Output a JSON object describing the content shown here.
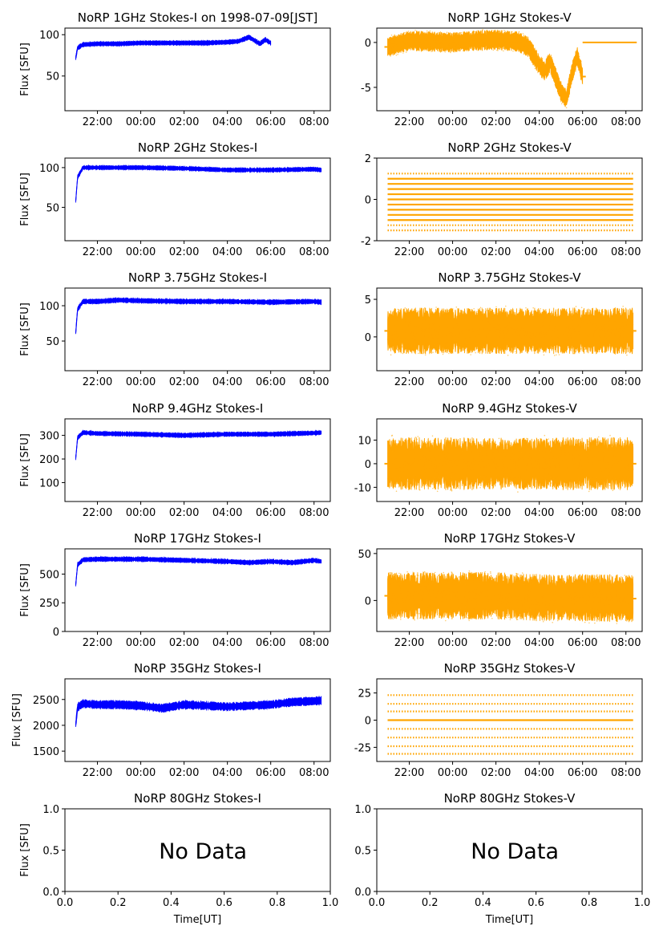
{
  "figure": {
    "x_label": "Time[UT]",
    "y_label": "Flux [SFU]",
    "time_tick_labels": [
      "22:00",
      "00:00",
      "02:00",
      "04:00",
      "06:00",
      "08:00"
    ],
    "no_data_text": "No Data",
    "empty_axis_ticks": [
      "0.0",
      "0.2",
      "0.4",
      "0.6",
      "0.8",
      "1.0"
    ],
    "empty_y_ticks": [
      "0.0",
      "0.5",
      "1.0"
    ],
    "colors": {
      "stokes_i": "#0000ff",
      "stokes_v": "#ffa500",
      "axis": "#000000"
    }
  },
  "chart_data": [
    {
      "type": "line",
      "title": "NoRP 1GHz Stokes-I on 1998-07-09[JST]",
      "ylabel": "Flux [SFU]",
      "xlabel": "",
      "x_range": [
        "1998-07-08 20:30",
        "1998-07-09 08:45"
      ],
      "ylim": [
        8,
        108
      ],
      "y_ticks": [
        50,
        100
      ],
      "series": [
        {
          "color": "#0000ff",
          "x_span": [
            "1998-07-08 21:00",
            "1998-07-09 06:00"
          ],
          "noise": 2,
          "x": [
            "21:00",
            "21:05",
            "21:20",
            "22:00",
            "23:00",
            "00:00",
            "01:00",
            "02:00",
            "03:00",
            "04:00",
            "04:30",
            "05:00",
            "05:15",
            "05:30",
            "05:45",
            "06:00"
          ],
          "y": [
            72,
            84,
            88,
            89,
            89,
            90,
            90,
            90,
            90,
            91,
            92,
            97,
            93,
            89,
            94,
            90
          ]
        }
      ]
    },
    {
      "type": "scatter",
      "title": "NoRP 1GHz Stokes-V",
      "ylabel": "",
      "xlabel": "",
      "x_range": [
        "1998-07-08 20:30",
        "1998-07-09 08:45"
      ],
      "ylim": [
        -7.6,
        1.6
      ],
      "y_ticks": [
        -5,
        0
      ],
      "series": [
        {
          "color": "#ffa500",
          "x_span": [
            "1998-07-08 21:00",
            "1998-07-09 06:00"
          ],
          "noise": 0.8,
          "x": [
            "21:00",
            "22:00",
            "23:00",
            "00:00",
            "01:00",
            "02:00",
            "03:00",
            "03:30",
            "04:00",
            "04:15",
            "04:30",
            "05:00",
            "05:15",
            "05:30",
            "05:45",
            "06:00"
          ],
          "y": [
            -0.5,
            0.2,
            0.1,
            0,
            0.2,
            0.3,
            0.1,
            -0.5,
            -2.5,
            -3.2,
            -2.2,
            -5.5,
            -6.3,
            -3.5,
            -1.5,
            -3.8
          ]
        },
        {
          "color": "#ffa500",
          "x_span": [
            "1998-07-09 06:00",
            "1998-07-09 08:30"
          ],
          "noise": 0,
          "x": [
            "06:00",
            "08:30"
          ],
          "y": [
            0,
            0
          ]
        }
      ]
    },
    {
      "type": "line",
      "title": "NoRP 2GHz Stokes-I",
      "ylabel": "Flux [SFU]",
      "xlabel": "",
      "x_range": [
        "1998-07-08 20:30",
        "1998-07-09 08:45"
      ],
      "ylim": [
        8,
        112
      ],
      "y_ticks": [
        50,
        100
      ],
      "series": [
        {
          "color": "#0000ff",
          "x_span": [
            "1998-07-08 21:00",
            "1998-07-09 08:20"
          ],
          "noise": 2,
          "x": [
            "21:00",
            "21:05",
            "21:20",
            "22:00",
            "00:00",
            "02:00",
            "04:00",
            "06:00",
            "08:00",
            "08:20"
          ],
          "y": [
            58,
            88,
            100,
            100,
            100,
            99,
            97,
            97,
            98,
            97
          ]
        }
      ]
    },
    {
      "type": "scatter",
      "title": "NoRP 2GHz Stokes-V",
      "ylabel": "",
      "xlabel": "",
      "x_range": [
        "1998-07-08 20:30",
        "1998-07-09 08:45"
      ],
      "ylim": [
        -2,
        2
      ],
      "y_ticks": [
        -2,
        0,
        2
      ],
      "series": [
        {
          "color": "#ffa500",
          "x_span": [
            "1998-07-08 21:00",
            "1998-07-09 08:20"
          ],
          "noise": 0,
          "levels": [
            -1.5,
            -1.25,
            -1,
            -0.75,
            -0.5,
            -0.25,
            0,
            0.25,
            0.5,
            0.75,
            1,
            1.25
          ]
        }
      ]
    },
    {
      "type": "line",
      "title": "NoRP 3.75GHz Stokes-I",
      "ylabel": "Flux [SFU]",
      "xlabel": "",
      "x_range": [
        "1998-07-08 20:30",
        "1998-07-09 08:45"
      ],
      "ylim": [
        8,
        125
      ],
      "y_ticks": [
        50,
        100
      ],
      "series": [
        {
          "color": "#0000ff",
          "x_span": [
            "1998-07-08 21:00",
            "1998-07-09 08:20"
          ],
          "noise": 2.5,
          "x": [
            "21:00",
            "21:05",
            "21:20",
            "22:00",
            "23:00",
            "00:00",
            "02:00",
            "04:00",
            "06:00",
            "08:00",
            "08:20"
          ],
          "y": [
            62,
            95,
            106,
            106,
            108,
            107,
            106,
            106,
            105,
            106,
            105
          ]
        }
      ]
    },
    {
      "type": "scatter",
      "title": "NoRP 3.75GHz Stokes-V",
      "ylabel": "",
      "xlabel": "",
      "x_range": [
        "1998-07-08 20:30",
        "1998-07-09 08:45"
      ],
      "ylim": [
        -4.5,
        6.5
      ],
      "y_ticks": [
        0,
        5
      ],
      "series": [
        {
          "color": "#ffa500",
          "x_span": [
            "1998-07-08 21:00",
            "1998-07-09 08:20"
          ],
          "noise": 2.2,
          "x": [
            "21:00",
            "08:20"
          ],
          "y": [
            0.8,
            0.8
          ]
        }
      ]
    },
    {
      "type": "line",
      "title": "NoRP 9.4GHz Stokes-I",
      "ylabel": "Flux [SFU]",
      "xlabel": "",
      "x_range": [
        "1998-07-08 20:30",
        "1998-07-09 08:45"
      ],
      "ylim": [
        20,
        370
      ],
      "y_ticks": [
        100,
        200,
        300
      ],
      "series": [
        {
          "color": "#0000ff",
          "x_span": [
            "1998-07-08 21:00",
            "1998-07-09 08:20"
          ],
          "noise": 7,
          "x": [
            "21:00",
            "21:05",
            "21:20",
            "22:00",
            "00:00",
            "02:00",
            "04:00",
            "06:00",
            "08:00",
            "08:20"
          ],
          "y": [
            205,
            290,
            312,
            308,
            305,
            300,
            305,
            305,
            310,
            312
          ]
        }
      ]
    },
    {
      "type": "scatter",
      "title": "NoRP 9.4GHz Stokes-V",
      "ylabel": "",
      "xlabel": "",
      "x_range": [
        "1998-07-08 20:30",
        "1998-07-09 08:45"
      ],
      "ylim": [
        -16,
        19
      ],
      "y_ticks": [
        -10,
        0,
        10
      ],
      "series": [
        {
          "color": "#ffa500",
          "x_span": [
            "1998-07-08 21:00",
            "1998-07-09 08:20"
          ],
          "noise": 8,
          "x": [
            "21:00",
            "08:20"
          ],
          "y": [
            0,
            0
          ]
        }
      ]
    },
    {
      "type": "line",
      "title": "NoRP 17GHz Stokes-I",
      "ylabel": "Flux [SFU]",
      "xlabel": "",
      "x_range": [
        "1998-07-08 20:30",
        "1998-07-09 08:45"
      ],
      "ylim": [
        0,
        720
      ],
      "y_ticks": [
        0,
        250,
        500
      ],
      "series": [
        {
          "color": "#0000ff",
          "x_span": [
            "1998-07-08 21:00",
            "1998-07-09 08:20"
          ],
          "noise": 15,
          "x": [
            "21:00",
            "21:05",
            "21:20",
            "22:00",
            "00:00",
            "02:00",
            "04:00",
            "05:00",
            "06:00",
            "07:00",
            "08:00",
            "08:20"
          ],
          "y": [
            410,
            580,
            625,
            630,
            630,
            620,
            610,
            600,
            610,
            600,
            620,
            610
          ]
        }
      ]
    },
    {
      "type": "scatter",
      "title": "NoRP 17GHz Stokes-V",
      "ylabel": "",
      "xlabel": "",
      "x_range": [
        "1998-07-08 20:30",
        "1998-07-09 08:45"
      ],
      "ylim": [
        -33,
        55
      ],
      "y_ticks": [
        0,
        50
      ],
      "series": [
        {
          "color": "#ffa500",
          "x_span": [
            "1998-07-08 21:00",
            "1998-07-09 08:20"
          ],
          "noise": 18,
          "x": [
            "21:00",
            "00:00",
            "02:00",
            "04:00",
            "06:00",
            "08:20"
          ],
          "y": [
            5,
            5,
            5,
            3,
            3,
            2
          ]
        }
      ]
    },
    {
      "type": "line",
      "title": "NoRP 35GHz Stokes-I",
      "ylabel": "Flux [SFU]",
      "xlabel": "",
      "x_range": [
        "1998-07-08 20:30",
        "1998-07-09 08:45"
      ],
      "ylim": [
        1300,
        2900
      ],
      "y_ticks": [
        1500,
        2000,
        2500
      ],
      "series": [
        {
          "color": "#0000ff",
          "x_span": [
            "1998-07-08 21:00",
            "1998-07-09 08:20"
          ],
          "noise": 60,
          "x": [
            "21:00",
            "21:05",
            "21:20",
            "22:00",
            "23:00",
            "00:00",
            "01:00",
            "02:00",
            "03:00",
            "04:00",
            "05:00",
            "06:00",
            "07:00",
            "08:00",
            "08:20"
          ],
          "y": [
            2020,
            2350,
            2420,
            2400,
            2400,
            2380,
            2330,
            2400,
            2380,
            2360,
            2380,
            2400,
            2450,
            2470,
            2480
          ]
        }
      ]
    },
    {
      "type": "scatter",
      "title": "NoRP 35GHz Stokes-V",
      "ylabel": "",
      "xlabel": "",
      "x_range": [
        "1998-07-08 20:30",
        "1998-07-09 08:45"
      ],
      "ylim": [
        -38,
        38
      ],
      "y_ticks": [
        -25,
        0,
        25
      ],
      "series": [
        {
          "color": "#ffa500",
          "x_span": [
            "1998-07-08 21:00",
            "1998-07-09 08:20"
          ],
          "noise": 0,
          "levels": [
            -31,
            -24,
            -16,
            -8,
            0,
            8,
            15,
            23
          ]
        }
      ]
    },
    {
      "type": "empty",
      "title": "NoRP 80GHz Stokes-I",
      "ylabel": "Flux [SFU]",
      "xlabel": "Time[UT]",
      "xlim": [
        0,
        1
      ],
      "ylim": [
        0,
        1
      ],
      "series": []
    },
    {
      "type": "empty",
      "title": "NoRP 80GHz Stokes-V",
      "ylabel": "",
      "xlabel": "Time[UT]",
      "xlim": [
        0,
        1
      ],
      "ylim": [
        0,
        1
      ],
      "series": []
    }
  ]
}
